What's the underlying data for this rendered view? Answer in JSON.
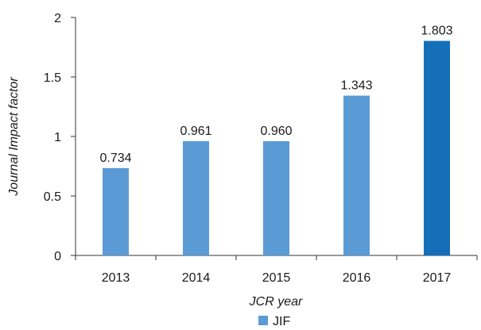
{
  "chart_data": {
    "type": "bar",
    "categories": [
      "2013",
      "2014",
      "2015",
      "2016",
      "2017"
    ],
    "series": [
      {
        "name": "JIF",
        "values": [
          0.734,
          0.961,
          0.96,
          1.343,
          1.803
        ]
      }
    ],
    "data_labels": [
      "0.734",
      "0.961",
      "0.960",
      "1.343",
      "1.803"
    ],
    "title": "",
    "xlabel": "JCR year",
    "ylabel": "Journal Impact factor",
    "ylim": [
      0,
      2
    ],
    "yticks": [
      0,
      0.5,
      1,
      1.5,
      2
    ],
    "ytick_labels": [
      "0",
      "0.5",
      "1",
      "1.5",
      "2"
    ],
    "grid": false,
    "legend_position": "bottom-center",
    "colors": {
      "bar": "#5b9bd5",
      "highlight_bar": "#156fb8",
      "axis": "#333333"
    },
    "highlight_index": 4
  }
}
